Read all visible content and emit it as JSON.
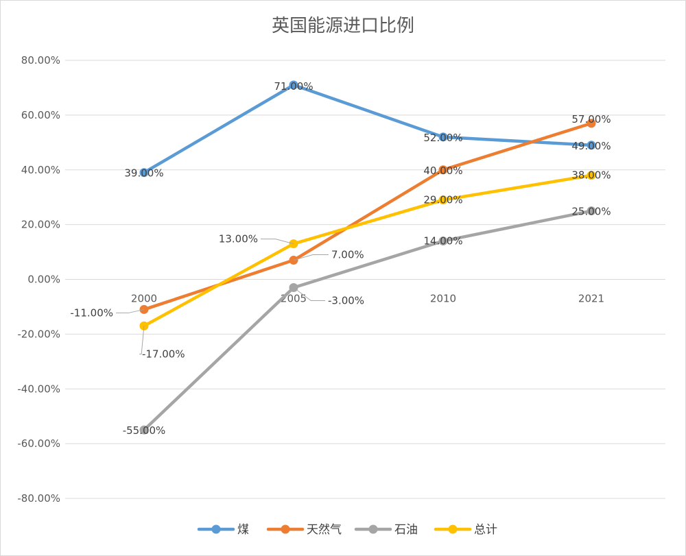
{
  "chart_data": {
    "type": "line",
    "title": "英国能源进口比例",
    "categories": [
      "2000",
      "2005",
      "2010",
      "2021"
    ],
    "ylim": [
      -80,
      80
    ],
    "yticks": [
      80,
      60,
      40,
      20,
      0,
      -20,
      -40,
      -60,
      -80
    ],
    "ytick_labels": [
      "80.00%",
      "60.00%",
      "40.00%",
      "20.00%",
      "0.00%",
      "-20.00%",
      "-40.00%",
      "-60.00%",
      "-80.00%"
    ],
    "grid": true,
    "legend_position": "bottom",
    "series": [
      {
        "name": "煤",
        "color": "#5b9bd5",
        "values": [
          39,
          71,
          52,
          49
        ],
        "labels": [
          "39.00%",
          "71.00%",
          "52.00%",
          "49.00%"
        ]
      },
      {
        "name": "天然气",
        "color": "#ed7d31",
        "values": [
          -11,
          7,
          40,
          57
        ],
        "labels": [
          "-11.00%",
          "7.00%",
          "40.00%",
          "57.00%"
        ]
      },
      {
        "name": "石油",
        "color": "#a5a5a5",
        "values": [
          -55,
          -3,
          14,
          25
        ],
        "labels": [
          "-55.00%",
          "-3.00%",
          "14.00%",
          "25.00%"
        ]
      },
      {
        "name": "总计",
        "color": "#ffc000",
        "values": [
          -17,
          13,
          29,
          38
        ],
        "labels": [
          "-17.00%",
          "13.00%",
          "29.00%",
          "38.00%"
        ]
      }
    ]
  }
}
